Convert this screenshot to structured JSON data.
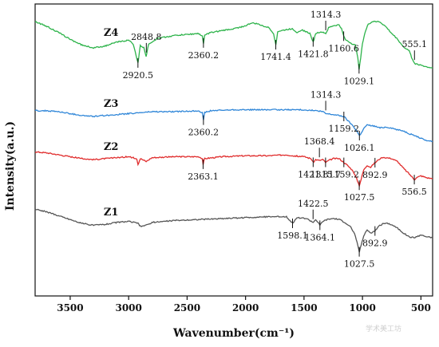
{
  "chart_data": {
    "type": "line",
    "title": "",
    "xlabel": "Wavenumber(cm⁻¹)",
    "ylabel": "Intensity(a.u.)",
    "xlim": [
      3800,
      400
    ],
    "x_reversed": true,
    "xticks": [
      3500,
      3000,
      2500,
      2000,
      1500,
      1000,
      500
    ],
    "xtick_labels": [
      "3500",
      "3000",
      "2500",
      "2000",
      "1500",
      "1000",
      "500"
    ],
    "yticks": false,
    "grid": false,
    "legend": "none",
    "series": [
      {
        "name": "Z4",
        "color": "#2db34a",
        "label_x": 3150,
        "offset": 3.0,
        "points": [
          [
            3800,
            0.55
          ],
          [
            3700,
            0.45
          ],
          [
            3600,
            0.32
          ],
          [
            3500,
            0.18
          ],
          [
            3400,
            0.06
          ],
          [
            3300,
            0.0
          ],
          [
            3200,
            0.04
          ],
          [
            3100,
            0.12
          ],
          [
            3000,
            0.16
          ],
          [
            2960,
            0.08
          ],
          [
            2920,
            -0.32
          ],
          [
            2900,
            0.05
          ],
          [
            2870,
            0.0
          ],
          [
            2850,
            -0.18
          ],
          [
            2830,
            0.08
          ],
          [
            2750,
            0.2
          ],
          [
            2600,
            0.26
          ],
          [
            2500,
            0.28
          ],
          [
            2400,
            0.3
          ],
          [
            2370,
            0.24
          ],
          [
            2360,
            0.1
          ],
          [
            2350,
            0.26
          ],
          [
            2300,
            0.32
          ],
          [
            2200,
            0.36
          ],
          [
            2100,
            0.4
          ],
          [
            2000,
            0.46
          ],
          [
            1950,
            0.52
          ],
          [
            1900,
            0.5
          ],
          [
            1850,
            0.46
          ],
          [
            1800,
            0.42
          ],
          [
            1760,
            0.3
          ],
          [
            1741,
            0.06
          ],
          [
            1725,
            0.34
          ],
          [
            1650,
            0.38
          ],
          [
            1600,
            0.4
          ],
          [
            1560,
            0.32
          ],
          [
            1520,
            0.38
          ],
          [
            1450,
            0.3
          ],
          [
            1421,
            0.12
          ],
          [
            1400,
            0.3
          ],
          [
            1350,
            0.34
          ],
          [
            1314,
            0.3
          ],
          [
            1290,
            0.42
          ],
          [
            1250,
            0.46
          ],
          [
            1200,
            0.48
          ],
          [
            1180,
            0.4
          ],
          [
            1160,
            0.24
          ],
          [
            1140,
            0.16
          ],
          [
            1100,
            0.1
          ],
          [
            1060,
            0.05
          ],
          [
            1040,
            -0.2
          ],
          [
            1029,
            -0.44
          ],
          [
            1015,
            -0.2
          ],
          [
            1000,
            0.1
          ],
          [
            980,
            0.3
          ],
          [
            950,
            0.5
          ],
          [
            900,
            0.56
          ],
          [
            850,
            0.54
          ],
          [
            800,
            0.44
          ],
          [
            750,
            0.3
          ],
          [
            700,
            0.18
          ],
          [
            650,
            0.02
          ],
          [
            600,
            -0.06
          ],
          [
            580,
            -0.2
          ],
          [
            555,
            -0.32
          ],
          [
            540,
            -0.34
          ],
          [
            500,
            -0.36
          ],
          [
            450,
            -0.4
          ],
          [
            400,
            -0.42
          ]
        ]
      },
      {
        "name": "Z3",
        "color": "#2f86d8",
        "label_x": 3150,
        "offset": 2.0,
        "points": [
          [
            3800,
            0.22
          ],
          [
            3700,
            0.22
          ],
          [
            3600,
            0.2
          ],
          [
            3500,
            0.16
          ],
          [
            3400,
            0.12
          ],
          [
            3300,
            0.1
          ],
          [
            3200,
            0.12
          ],
          [
            3100,
            0.14
          ],
          [
            3000,
            0.16
          ],
          [
            2900,
            0.18
          ],
          [
            2800,
            0.2
          ],
          [
            2600,
            0.2
          ],
          [
            2400,
            0.22
          ],
          [
            2370,
            0.18
          ],
          [
            2360,
            0.02
          ],
          [
            2350,
            0.18
          ],
          [
            2300,
            0.22
          ],
          [
            2100,
            0.24
          ],
          [
            1900,
            0.24
          ],
          [
            1700,
            0.24
          ],
          [
            1500,
            0.24
          ],
          [
            1400,
            0.22
          ],
          [
            1340,
            0.2
          ],
          [
            1314,
            0.16
          ],
          [
            1250,
            0.14
          ],
          [
            1200,
            0.12
          ],
          [
            1159,
            0.1
          ],
          [
            1120,
            0.0
          ],
          [
            1080,
            -0.1
          ],
          [
            1050,
            -0.2
          ],
          [
            1026,
            -0.3
          ],
          [
            1000,
            -0.2
          ],
          [
            980,
            -0.12
          ],
          [
            960,
            -0.08
          ],
          [
            900,
            -0.1
          ],
          [
            850,
            -0.14
          ],
          [
            800,
            -0.12
          ],
          [
            750,
            -0.14
          ],
          [
            700,
            -0.18
          ],
          [
            650,
            -0.2
          ],
          [
            600,
            -0.26
          ],
          [
            550,
            -0.3
          ],
          [
            500,
            -0.36
          ],
          [
            450,
            -0.4
          ],
          [
            400,
            -0.42
          ]
        ]
      },
      {
        "name": "Z2",
        "color": "#e02b2b",
        "label_x": 3150,
        "offset": 1.0,
        "points": [
          [
            3800,
            0.36
          ],
          [
            3700,
            0.34
          ],
          [
            3600,
            0.3
          ],
          [
            3500,
            0.26
          ],
          [
            3400,
            0.22
          ],
          [
            3300,
            0.2
          ],
          [
            3200,
            0.22
          ],
          [
            3100,
            0.24
          ],
          [
            3000,
            0.26
          ],
          [
            2930,
            0.22
          ],
          [
            2920,
            0.1
          ],
          [
            2900,
            0.22
          ],
          [
            2850,
            0.16
          ],
          [
            2800,
            0.24
          ],
          [
            2600,
            0.26
          ],
          [
            2400,
            0.26
          ],
          [
            2370,
            0.22
          ],
          [
            2363,
            0.1
          ],
          [
            2350,
            0.22
          ],
          [
            2200,
            0.26
          ],
          [
            2000,
            0.28
          ],
          [
            1800,
            0.28
          ],
          [
            1650,
            0.3
          ],
          [
            1600,
            0.28
          ],
          [
            1500,
            0.26
          ],
          [
            1440,
            0.22
          ],
          [
            1421,
            0.14
          ],
          [
            1400,
            0.2
          ],
          [
            1368,
            0.18
          ],
          [
            1340,
            0.2
          ],
          [
            1315,
            0.14
          ],
          [
            1290,
            0.18
          ],
          [
            1250,
            0.22
          ],
          [
            1200,
            0.22
          ],
          [
            1159,
            0.14
          ],
          [
            1120,
            0.06
          ],
          [
            1080,
            -0.04
          ],
          [
            1050,
            -0.2
          ],
          [
            1027,
            -0.34
          ],
          [
            1010,
            -0.2
          ],
          [
            990,
            -0.02
          ],
          [
            960,
            0.08
          ],
          [
            930,
            0.04
          ],
          [
            900,
            0.12
          ],
          [
            850,
            0.22
          ],
          [
            800,
            0.24
          ],
          [
            750,
            0.22
          ],
          [
            700,
            0.16
          ],
          [
            650,
            0.02
          ],
          [
            600,
            -0.1
          ],
          [
            570,
            -0.18
          ],
          [
            556,
            -0.22
          ],
          [
            540,
            -0.18
          ],
          [
            500,
            -0.14
          ],
          [
            450,
            -0.18
          ],
          [
            400,
            -0.2
          ]
        ]
      },
      {
        "name": "Z1",
        "color": "#555555",
        "label_x": 3150,
        "offset": 0.0,
        "points": [
          [
            3800,
            0.5
          ],
          [
            3700,
            0.44
          ],
          [
            3600,
            0.36
          ],
          [
            3500,
            0.28
          ],
          [
            3400,
            0.2
          ],
          [
            3300,
            0.16
          ],
          [
            3200,
            0.18
          ],
          [
            3100,
            0.22
          ],
          [
            3000,
            0.24
          ],
          [
            2920,
            0.2
          ],
          [
            2900,
            0.14
          ],
          [
            2850,
            0.16
          ],
          [
            2800,
            0.22
          ],
          [
            2600,
            0.26
          ],
          [
            2400,
            0.28
          ],
          [
            2200,
            0.3
          ],
          [
            2000,
            0.32
          ],
          [
            1800,
            0.34
          ],
          [
            1650,
            0.34
          ],
          [
            1598,
            0.2
          ],
          [
            1560,
            0.32
          ],
          [
            1480,
            0.3
          ],
          [
            1422,
            0.22
          ],
          [
            1400,
            0.28
          ],
          [
            1364,
            0.16
          ],
          [
            1340,
            0.24
          ],
          [
            1300,
            0.28
          ],
          [
            1250,
            0.3
          ],
          [
            1200,
            0.28
          ],
          [
            1150,
            0.22
          ],
          [
            1100,
            0.12
          ],
          [
            1060,
            -0.06
          ],
          [
            1040,
            -0.26
          ],
          [
            1027,
            -0.4
          ],
          [
            1010,
            -0.24
          ],
          [
            990,
            -0.06
          ],
          [
            960,
            0.06
          ],
          [
            930,
            0.0
          ],
          [
            893,
            0.04
          ],
          [
            860,
            0.14
          ],
          [
            820,
            0.2
          ],
          [
            780,
            0.2
          ],
          [
            740,
            0.16
          ],
          [
            700,
            0.1
          ],
          [
            650,
            0.0
          ],
          [
            600,
            -0.08
          ],
          [
            550,
            -0.1
          ],
          [
            500,
            -0.04
          ],
          [
            450,
            -0.08
          ],
          [
            400,
            -0.1
          ]
        ]
      }
    ],
    "annotations": [
      {
        "series": "Z4",
        "x": 2920.5,
        "label": "2920.5",
        "dir": "below"
      },
      {
        "series": "Z4",
        "x": 2848.8,
        "label": "2848.8",
        "dir": "above"
      },
      {
        "series": "Z4",
        "x": 2360.2,
        "label": "2360.2",
        "dir": "below"
      },
      {
        "series": "Z4",
        "x": 1741.4,
        "label": "1741.4",
        "dir": "below"
      },
      {
        "series": "Z4",
        "x": 1421.8,
        "label": "1421.8",
        "dir": "below"
      },
      {
        "series": "Z4",
        "x": 1314.3,
        "label": "1314.3",
        "dir": "above"
      },
      {
        "series": "Z4",
        "x": 1160.6,
        "label": "1160.6",
        "dir": "below"
      },
      {
        "series": "Z4",
        "x": 1029.1,
        "label": "1029.1",
        "dir": "below"
      },
      {
        "series": "Z4",
        "x": 555.1,
        "label": "555.1",
        "dir": "above"
      },
      {
        "series": "Z3",
        "x": 2360.2,
        "label": "2360.2",
        "dir": "below"
      },
      {
        "series": "Z3",
        "x": 1314.3,
        "label": "1314.3",
        "dir": "above"
      },
      {
        "series": "Z3",
        "x": 1159.2,
        "label": "1159.2",
        "dir": "below"
      },
      {
        "series": "Z3",
        "x": 1026.1,
        "label": "1026.1",
        "dir": "below"
      },
      {
        "series": "Z2",
        "x": 2363.1,
        "label": "2363.1",
        "dir": "below"
      },
      {
        "series": "Z2",
        "x": 1368.4,
        "label": "1368.4",
        "dir": "above"
      },
      {
        "series": "Z2",
        "x": 1421.8,
        "label": "1421.8",
        "dir": "below"
      },
      {
        "series": "Z2",
        "x": 1315.7,
        "label": "1315.7",
        "dir": "below"
      },
      {
        "series": "Z2",
        "x": 1159.2,
        "label": "1159.2",
        "dir": "below"
      },
      {
        "series": "Z2",
        "x": 892.9,
        "label": "892.9",
        "dir": "below"
      },
      {
        "series": "Z2",
        "x": 1027.5,
        "label": "1027.5",
        "dir": "below"
      },
      {
        "series": "Z2",
        "x": 556.5,
        "label": "556.5",
        "dir": "below"
      },
      {
        "series": "Z1",
        "x": 1598.1,
        "label": "1598.1",
        "dir": "below"
      },
      {
        "series": "Z1",
        "x": 1422.5,
        "label": "1422.5",
        "dir": "above"
      },
      {
        "series": "Z1",
        "x": 1364.1,
        "label": "1364.1",
        "dir": "below"
      },
      {
        "series": "Z1",
        "x": 892.9,
        "label": "892.9",
        "dir": "below"
      },
      {
        "series": "Z1",
        "x": 1027.5,
        "label": "1027.5",
        "dir": "below"
      }
    ]
  },
  "watermark": "学术美工坊"
}
